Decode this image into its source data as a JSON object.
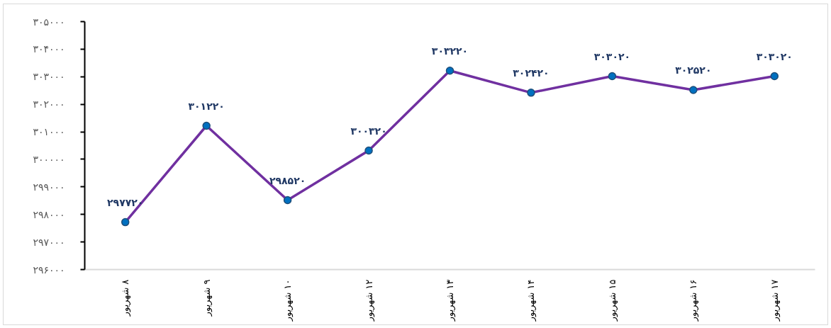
{
  "chart_data": {
    "type": "line",
    "categories": [
      "۸ شهریور",
      "۹ شهریور",
      "۱۰ شهریور",
      "۱۲ شهریور",
      "۱۳ شهریور",
      "۱۴ شهریور",
      "۱۵ شهریور",
      "۱۶ شهریور",
      "۱۷ شهریور"
    ],
    "series": [
      {
        "color": "#7030a0",
        "values": [
          297720,
          301220,
          298520,
          300320,
          303220,
          302420,
          303020,
          302520,
          303020
        ],
        "value_labels": [
          "۲۹۷۷۲۰",
          "۳۰۱۲۲۰",
          "۲۹۸۵۲۰",
          "۳۰۰۳۲۰",
          "۳۰۳۲۲۰",
          "۳۰۲۴۲۰",
          "۳۰۳۰۲۰",
          "۳۰۲۵۲۰",
          "۳۰۳۰۲۰"
        ]
      }
    ],
    "ylim": [
      296000,
      305000
    ],
    "yticks": [
      {
        "value": 296000,
        "label": "۲۹۶۰۰۰"
      },
      {
        "value": 297000,
        "label": "۲۹۷۰۰۰"
      },
      {
        "value": 298000,
        "label": "۲۹۸۰۰۰"
      },
      {
        "value": 299000,
        "label": "۲۹۹۰۰۰"
      },
      {
        "value": 300000,
        "label": "۳۰۰۰۰۰"
      },
      {
        "value": 301000,
        "label": "۳۰۱۰۰۰"
      },
      {
        "value": 302000,
        "label": "۳۰۲۰۰۰"
      },
      {
        "value": 303000,
        "label": "۳۰۳۰۰۰"
      },
      {
        "value": 304000,
        "label": "۳۰۴۰۰۰"
      },
      {
        "value": 305000,
        "label": "۳۰۵۰۰۰"
      }
    ],
    "grid": false,
    "marker": "circle",
    "line_style": "solid"
  }
}
